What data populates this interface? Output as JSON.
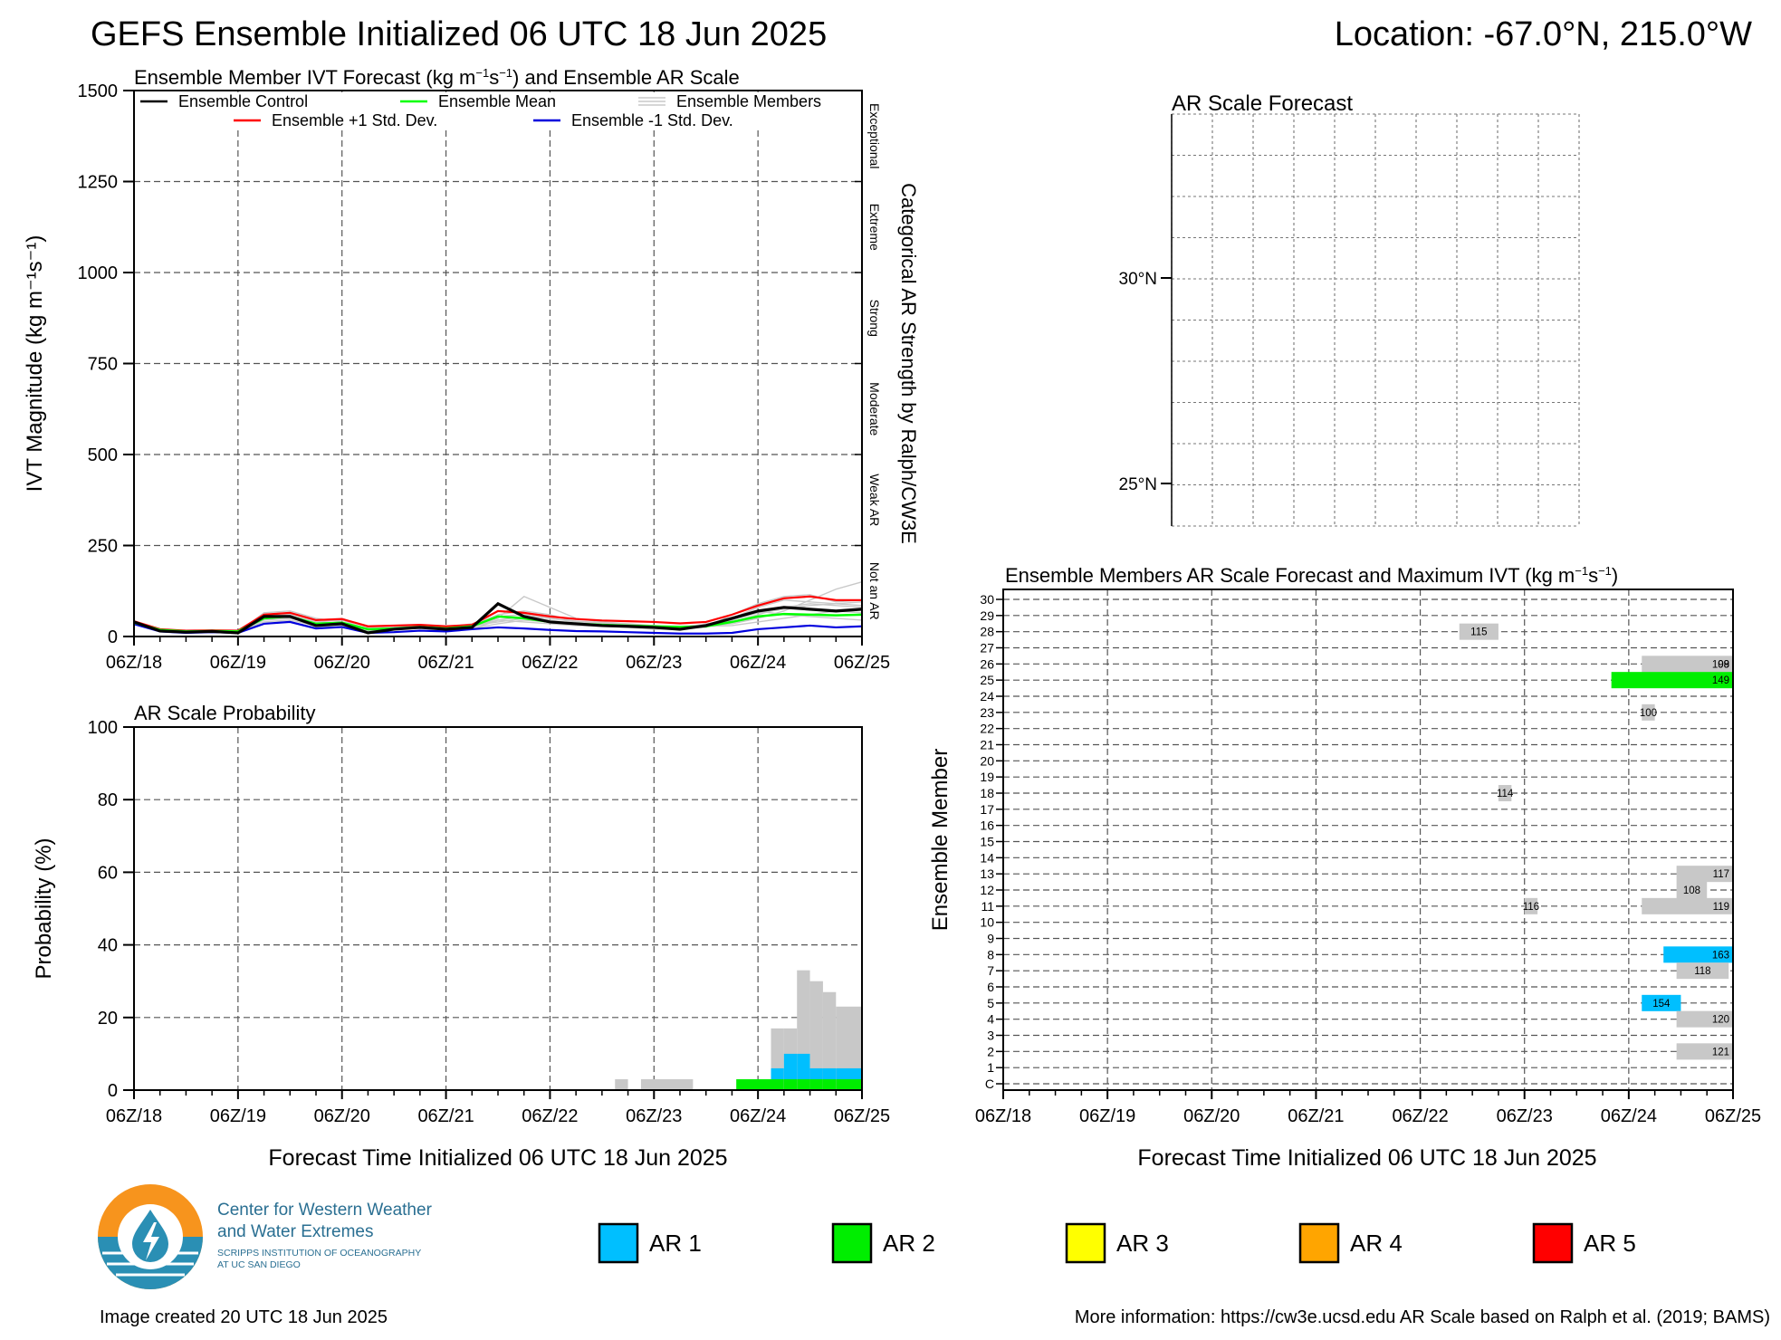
{
  "header": {
    "title": "GEFS Ensemble Initialized 06 UTC 18 Jun 2025",
    "location": "Location: -67.0°N, 215.0°W"
  },
  "x_tick_labels": [
    "06Z/18",
    "06Z/19",
    "06Z/20",
    "06Z/21",
    "06Z/22",
    "06Z/23",
    "06Z/24",
    "06Z/25"
  ],
  "x_axis_title": "Forecast Time Initialized 06 UTC 18 Jun 2025",
  "colors": {
    "ar1": "#00bfff",
    "ar2": "#00ee00",
    "ar3": "#ffff00",
    "ar4": "#ffa500",
    "ar5": "#ff0000",
    "member_gray": "#c8c8c8",
    "control": "#000000",
    "mean": "#00ff00",
    "plus_std": "#ff0000",
    "minus_std": "#0000dd"
  },
  "chart_data": [
    {
      "id": "ivt",
      "type": "line",
      "title_html": "Ensemble Member IVT Forecast (kg m<tspan font-size='13' dy='-8'>−1</tspan><tspan dy='8'>s</tspan><tspan font-size='13' dy='-8'>−1</tspan><tspan dy='8'>) and Ensemble AR Scale</tspan>",
      "ylabel": "IVT Magnitude (kg m⁻¹s⁻¹)",
      "y_ticks": [
        0,
        250,
        500,
        750,
        1000,
        1250,
        1500
      ],
      "ylim": [
        0,
        1500
      ],
      "xlim_hours": [
        0,
        168
      ],
      "right_axis_title": "Categorical AR Strength by Ralph/CW3E",
      "right_categories": [
        "Not an AR",
        "Weak AR",
        "Moderate",
        "Strong",
        "Extreme",
        "Exceptional"
      ],
      "legend": [
        "Ensemble Control",
        "Ensemble Mean",
        "Ensemble Members",
        "Ensemble +1 Std. Dev.",
        "Ensemble -1 Std. Dev."
      ],
      "x_hours": [
        0,
        6,
        12,
        18,
        24,
        30,
        36,
        42,
        48,
        54,
        60,
        66,
        72,
        78,
        84,
        90,
        96,
        102,
        108,
        114,
        120,
        126,
        132,
        138,
        144,
        150,
        156,
        162,
        168
      ],
      "series": [
        {
          "name": "Ensemble Control",
          "values": [
            40,
            15,
            12,
            14,
            10,
            55,
            55,
            30,
            35,
            10,
            20,
            25,
            20,
            25,
            90,
            55,
            40,
            35,
            30,
            28,
            25,
            20,
            30,
            50,
            70,
            80,
            75,
            70,
            75
          ]
        },
        {
          "name": "Ensemble Mean",
          "values": [
            38,
            18,
            14,
            15,
            14,
            50,
            55,
            35,
            38,
            20,
            22,
            26,
            22,
            28,
            55,
            50,
            40,
            35,
            32,
            30,
            28,
            26,
            28,
            40,
            55,
            62,
            60,
            58,
            60
          ]
        },
        {
          "name": "Ensemble +1 Std. Dev.",
          "values": [
            42,
            20,
            16,
            17,
            16,
            60,
            65,
            45,
            48,
            28,
            30,
            32,
            28,
            32,
            70,
            65,
            55,
            48,
            44,
            42,
            40,
            36,
            40,
            60,
            85,
            105,
            110,
            100,
            100
          ]
        },
        {
          "name": "Ensemble -1 Std. Dev.",
          "values": [
            34,
            14,
            10,
            12,
            10,
            35,
            40,
            22,
            26,
            10,
            12,
            16,
            14,
            20,
            25,
            22,
            18,
            15,
            14,
            12,
            10,
            8,
            8,
            10,
            20,
            25,
            30,
            25,
            28
          ]
        }
      ],
      "members": [
        [
          35,
          15,
          12,
          15,
          12,
          65,
          70,
          50,
          40,
          15,
          20,
          25,
          20,
          30,
          60,
          70,
          60,
          40,
          35,
          30,
          28,
          25,
          30,
          40,
          60,
          80,
          90,
          85,
          80
        ],
        [
          36,
          16,
          12,
          14,
          12,
          40,
          45,
          30,
          35,
          15,
          25,
          30,
          25,
          20,
          45,
          40,
          35,
          30,
          28,
          25,
          20,
          20,
          25,
          60,
          90,
          110,
          115,
          95,
          100
        ],
        [
          38,
          16,
          13,
          15,
          12,
          55,
          60,
          40,
          45,
          20,
          22,
          25,
          20,
          25,
          50,
          110,
          80,
          50,
          40,
          35,
          30,
          25,
          30,
          35,
          50,
          70,
          100,
          130,
          150
        ],
        [
          37,
          15,
          12,
          14,
          11,
          45,
          50,
          35,
          30,
          20,
          25,
          30,
          25,
          30,
          40,
          50,
          45,
          35,
          30,
          28,
          25,
          22,
          35,
          45,
          70,
          60,
          55,
          50,
          45
        ],
        [
          39,
          17,
          14,
          16,
          13,
          35,
          40,
          25,
          30,
          18,
          20,
          22,
          18,
          22,
          35,
          45,
          40,
          32,
          30,
          28,
          26,
          24,
          28,
          30,
          40,
          50,
          60,
          70,
          65
        ],
        [
          36,
          15,
          12,
          15,
          12,
          60,
          65,
          45,
          50,
          25,
          28,
          30,
          25,
          35,
          55,
          60,
          50,
          42,
          38,
          34,
          30,
          28,
          32,
          50,
          80,
          100,
          95,
          90,
          85
        ],
        [
          38,
          16,
          13,
          15,
          12,
          50,
          55,
          40,
          35,
          18,
          20,
          24,
          20,
          26,
          45,
          55,
          50,
          40,
          35,
          30,
          28,
          26,
          30,
          45,
          65,
          75,
          85,
          90,
          95
        ]
      ]
    },
    {
      "id": "prob",
      "type": "bar",
      "title": "AR Scale Probability",
      "ylabel": "Probability (%)",
      "y_ticks": [
        0,
        20,
        40,
        60,
        80,
        100
      ],
      "ylim": [
        0,
        100
      ],
      "bars": [
        {
          "h0": 111,
          "h1": 114,
          "ar1": 0,
          "ar2": 0,
          "any": 3
        },
        {
          "h0": 117,
          "h1": 129,
          "ar1": 0,
          "ar2": 0,
          "any": 3
        },
        {
          "h0": 139,
          "h1": 147,
          "ar1": 0,
          "ar2": 3,
          "any": 3
        },
        {
          "h0": 147,
          "h1": 150,
          "ar1": 3,
          "ar2": 3,
          "any": 17
        },
        {
          "h0": 150,
          "h1": 153,
          "ar1": 7,
          "ar2": 3,
          "any": 17
        },
        {
          "h0": 153,
          "h1": 156,
          "ar1": 7,
          "ar2": 3,
          "any": 33
        },
        {
          "h0": 156,
          "h1": 159,
          "ar1": 3,
          "ar2": 3,
          "any": 30
        },
        {
          "h0": 159,
          "h1": 162,
          "ar1": 3,
          "ar2": 3,
          "any": 27
        },
        {
          "h0": 162,
          "h1": 168,
          "ar1": 3,
          "ar2": 3,
          "any": 23
        }
      ]
    },
    {
      "id": "map",
      "type": "map",
      "title": "AR Scale Forecast",
      "lat_labels": [
        "30°N",
        "25°N"
      ]
    },
    {
      "id": "members",
      "type": "bar",
      "title_html": "Ensemble Members AR Scale Forecast and Maximum IVT (kg m<tspan font-size='13' dy='-8'>−1</tspan><tspan dy='8'>s</tspan><tspan font-size='13' dy='-8'>−1</tspan><tspan dy='8'>)</tspan>",
      "ylabel": "Ensemble Member",
      "rows": [
        "C",
        "1",
        "2",
        "3",
        "4",
        "5",
        "6",
        "7",
        "8",
        "9",
        "10",
        "11",
        "12",
        "13",
        "14",
        "15",
        "16",
        "17",
        "18",
        "19",
        "20",
        "21",
        "22",
        "23",
        "24",
        "25",
        "26",
        "27",
        "28",
        "29",
        "30"
      ],
      "blocks": [
        {
          "member": 28,
          "h0": 105,
          "h1": 114,
          "cat": "gray",
          "label": "115"
        },
        {
          "member": 26,
          "h0": 147,
          "h1": 168,
          "cat": "gray",
          "label": "108"
        },
        {
          "member": 26,
          "h0": 165,
          "h1": 168,
          "cat": "gray",
          "label": "99"
        },
        {
          "member": 25,
          "h0": 140,
          "h1": 168,
          "cat": "ar2",
          "label": "149"
        },
        {
          "member": 23,
          "h0": 147,
          "h1": 150,
          "cat": "gray",
          "label": "100"
        },
        {
          "member": 18,
          "h0": 114,
          "h1": 117,
          "cat": "gray",
          "label": "114"
        },
        {
          "member": 13,
          "h0": 155,
          "h1": 168,
          "cat": "gray",
          "label": "117"
        },
        {
          "member": 12,
          "h0": 155,
          "h1": 162,
          "cat": "gray",
          "label": "108"
        },
        {
          "member": 11,
          "h0": 120,
          "h1": 123,
          "cat": "gray",
          "label": "116"
        },
        {
          "member": 11,
          "h0": 147,
          "h1": 168,
          "cat": "gray",
          "label": "119"
        },
        {
          "member": 8,
          "h0": 152,
          "h1": 168,
          "cat": "ar1",
          "label": "163"
        },
        {
          "member": 7,
          "h0": 155,
          "h1": 167,
          "cat": "gray",
          "label": "118"
        },
        {
          "member": 5,
          "h0": 147,
          "h1": 156,
          "cat": "ar1",
          "label": "154"
        },
        {
          "member": 4,
          "h0": 155,
          "h1": 168,
          "cat": "gray",
          "label": "120"
        },
        {
          "member": 2,
          "h0": 155,
          "h1": 168,
          "cat": "gray",
          "label": "121"
        }
      ]
    }
  ],
  "logo": {
    "line1": "Center for Western Weather",
    "line2": "and Water Extremes",
    "line3": "SCRIPPS INSTITUTION OF OCEANOGRAPHY",
    "line4": "AT UC SAN DIEGO"
  },
  "legend_ar": [
    {
      "label": "AR 1",
      "color": "#00bfff"
    },
    {
      "label": "AR 2",
      "color": "#00ee00"
    },
    {
      "label": "AR 3",
      "color": "#ffff00"
    },
    {
      "label": "AR 4",
      "color": "#ffa500"
    },
    {
      "label": "AR 5",
      "color": "#ff0000"
    }
  ],
  "footer": {
    "created": "Image created 20 UTC 18 Jun 2025",
    "more_info": "More information: https://cw3e.ucsd.edu AR Scale based on Ralph et al. (2019; BAMS)"
  }
}
